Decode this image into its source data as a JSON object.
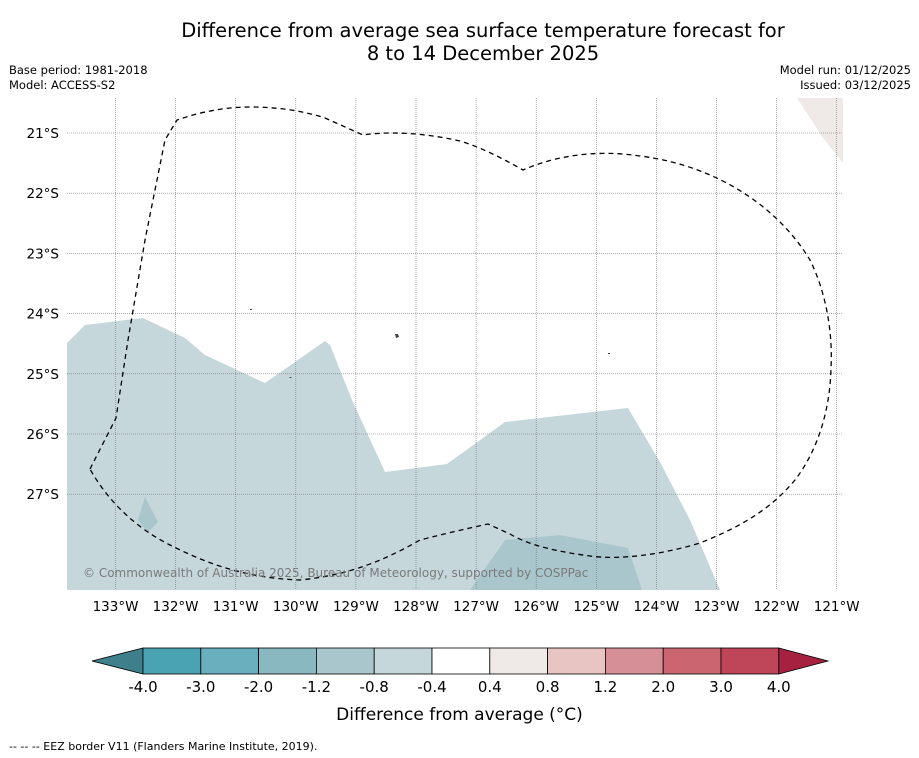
{
  "title": {
    "line1": "Difference from average sea surface temperature forecast for",
    "line2": "8 to 14 December 2025"
  },
  "meta_left": {
    "base_period": "Base period: 1981-2018",
    "model": "Model: ACCESS-S2"
  },
  "meta_right": {
    "model_run": "Model run: 01/12/2025",
    "issued": "Issued: 03/12/2025"
  },
  "map": {
    "lat_labels": [
      "21°S",
      "22°S",
      "23°S",
      "24°S",
      "25°S",
      "26°S",
      "27°S"
    ],
    "lon_labels": [
      "133°W",
      "132°W",
      "131°W",
      "130°W",
      "129°W",
      "128°W",
      "127°W",
      "126°W",
      "125°W",
      "124°W",
      "123°W",
      "122°W",
      "121°W"
    ],
    "copyright": "© Commonwealth of Australia 2025, Bureau of Meteorology, supported by COSPPac"
  },
  "colorbar": {
    "title": "Difference from average (°C)",
    "tick_labels": [
      "-4.0",
      "-3.0",
      "-2.0",
      "-1.2",
      "-0.8",
      "-0.4",
      "0.4",
      "0.8",
      "1.2",
      "2.0",
      "3.0",
      "4.0"
    ],
    "colors": [
      "#3f7f8b",
      "#4aa3b3",
      "#6aafbd",
      "#8ab8c1",
      "#a8c6cb",
      "#c5d7db",
      "#ffffff",
      "#efe9e7",
      "#e8c4c2",
      "#d78f97",
      "#cb6670",
      "#bf4659",
      "#a6203f"
    ]
  },
  "legend_note": "--  --  -- EEZ border V11 (Flanders Marine Institute, 2019)."
}
